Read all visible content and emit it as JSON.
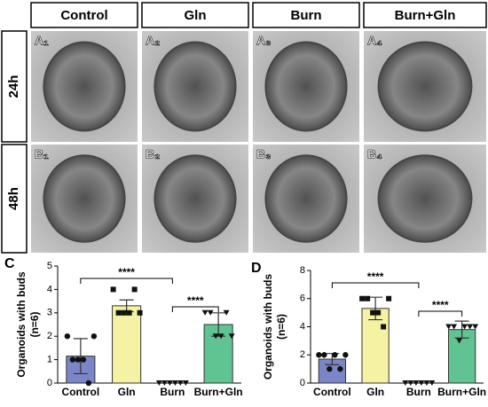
{
  "columns": [
    "Control",
    "Gln",
    "Burn",
    "Burn+Gln"
  ],
  "rows": [
    "24h",
    "48h"
  ],
  "panel_labels": [
    [
      "A₁",
      "A₂",
      "A₃",
      "A₄"
    ],
    [
      "B₁",
      "B₂",
      "B₃",
      "B₄"
    ]
  ],
  "chart_data": [
    {
      "type": "bar",
      "label": "C",
      "ylabel": "Organoids with buds",
      "ylabel_note": "(n=6)",
      "categories": [
        "Control",
        "Gln",
        "Burn",
        "Burn+Gln"
      ],
      "values": [
        1.15,
        3.3,
        0,
        2.5
      ],
      "errors": [
        0.75,
        0.25,
        0,
        0.5
      ],
      "points": [
        [
          2,
          1,
          1,
          1,
          0,
          2
        ],
        [
          4,
          3,
          3,
          3,
          4,
          3
        ],
        [
          0,
          0,
          0,
          0,
          0,
          0
        ],
        [
          3,
          3,
          2,
          2,
          3,
          2
        ]
      ],
      "colors": [
        "#7b86c8",
        "#f5f2a3",
        "#8a8fd0",
        "#5fc392"
      ],
      "ylim": [
        0,
        5
      ],
      "yticks": [
        0,
        1,
        2,
        3,
        4,
        5
      ],
      "significance": [
        "****",
        "****"
      ]
    },
    {
      "type": "bar",
      "label": "D",
      "ylabel": "Organoids with buds",
      "ylabel_note": "(n=6)",
      "categories": [
        "Control",
        "Gln",
        "Burn",
        "Burn+Gln"
      ],
      "values": [
        1.7,
        5.3,
        0,
        3.8
      ],
      "errors": [
        0.4,
        0.8,
        0,
        0.6
      ],
      "points": [
        [
          2,
          2,
          1,
          2,
          1,
          2
        ],
        [
          6,
          6,
          5,
          5,
          4,
          6
        ],
        [
          0,
          0,
          0,
          0,
          0,
          0
        ],
        [
          4,
          4,
          3,
          4,
          4,
          4
        ]
      ],
      "colors": [
        "#7b86c8",
        "#f5f2a3",
        "#8a8fd0",
        "#5fc392"
      ],
      "ylim": [
        0,
        8
      ],
      "yticks": [
        0,
        2,
        4,
        6,
        8
      ],
      "significance": [
        "****",
        "****"
      ]
    }
  ]
}
